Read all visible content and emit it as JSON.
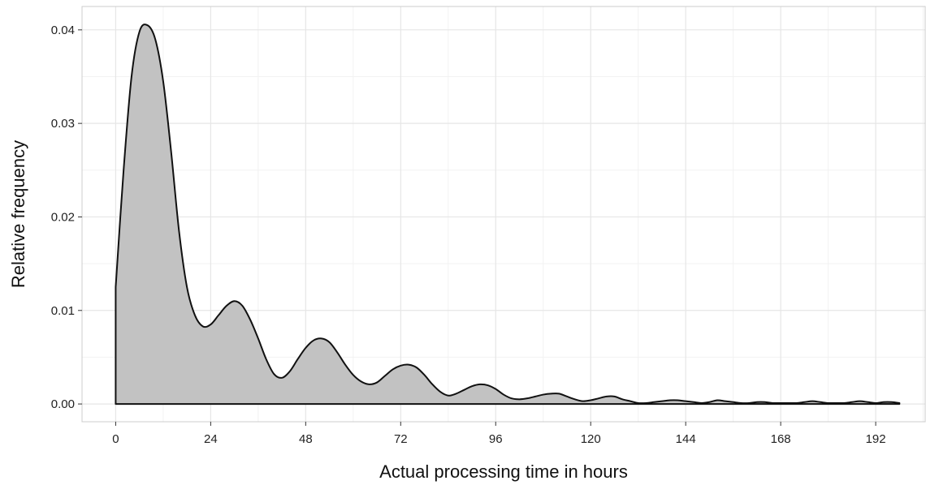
{
  "chart_data": {
    "type": "area",
    "xlabel": "Actual processing time in hours",
    "ylabel": "Relative frequency",
    "xlim": [
      -8.5,
      204.5
    ],
    "ylim": [
      -0.0019,
      0.0425
    ],
    "x_ticks": [
      0,
      24,
      48,
      72,
      96,
      120,
      144,
      168,
      192
    ],
    "x_tick_labels": [
      "0",
      "24",
      "48",
      "72",
      "96",
      "120",
      "144",
      "168",
      "192"
    ],
    "y_ticks": [
      0,
      0.01,
      0.02,
      0.03,
      0.04
    ],
    "y_tick_labels": [
      "0.00",
      "0.01",
      "0.02",
      "0.03",
      "0.04"
    ],
    "grid": true,
    "series": [
      {
        "x": [
          0,
          2,
          4,
          6,
          8,
          10,
          12,
          14,
          16,
          18,
          20,
          22,
          24,
          26,
          28,
          30,
          32,
          34,
          36,
          38,
          40,
          42,
          44,
          46,
          48,
          50,
          52,
          54,
          56,
          58,
          60,
          62,
          64,
          66,
          68,
          70,
          72,
          74,
          76,
          78,
          80,
          82,
          84,
          86,
          88,
          90,
          92,
          94,
          96,
          98,
          100,
          102,
          104,
          106,
          108,
          110,
          112,
          114,
          116,
          118,
          120,
          122,
          124,
          126,
          128,
          130,
          132,
          134,
          136,
          138,
          140,
          142,
          144,
          146,
          148,
          150,
          152,
          154,
          156,
          158,
          160,
          162,
          164,
          166,
          168,
          170,
          172,
          174,
          176,
          178,
          180,
          182,
          184,
          186,
          188,
          190,
          192,
          194,
          196,
          198
        ],
        "y": [
          0.0125,
          0.025,
          0.035,
          0.0398,
          0.0405,
          0.039,
          0.0345,
          0.027,
          0.0185,
          0.0125,
          0.0095,
          0.0083,
          0.0085,
          0.0095,
          0.0105,
          0.011,
          0.0105,
          0.009,
          0.007,
          0.0048,
          0.0032,
          0.0028,
          0.0035,
          0.0048,
          0.006,
          0.0068,
          0.007,
          0.0066,
          0.0055,
          0.0042,
          0.0031,
          0.0024,
          0.0021,
          0.0023,
          0.003,
          0.0037,
          0.0041,
          0.0042,
          0.0039,
          0.0031,
          0.0021,
          0.0013,
          0.0009,
          0.0011,
          0.0015,
          0.0019,
          0.0021,
          0.002,
          0.0016,
          0.001,
          0.0006,
          0.0005,
          0.0006,
          0.0008,
          0.001,
          0.0011,
          0.0011,
          0.0008,
          0.0005,
          0.0003,
          0.0004,
          0.0006,
          0.0008,
          0.0008,
          0.0005,
          0.0003,
          0.0001,
          0.0001,
          0.0002,
          0.0003,
          0.0004,
          0.0004,
          0.0003,
          0.0002,
          0.0001,
          0.0002,
          0.0004,
          0.0003,
          0.0002,
          0.0001,
          0.0001,
          0.0002,
          0.0002,
          0.0001,
          0.0001,
          0.0001,
          0.0001,
          0.0002,
          0.0003,
          0.0002,
          0.0001,
          0.0001,
          0.0001,
          0.0002,
          0.0003,
          0.0002,
          0.0001,
          0.0002,
          0.0002,
          0.0001
        ]
      }
    ],
    "colors": {
      "fill": "#c2c2c2",
      "line": "#111111",
      "grid_major": "#e6e6e6",
      "grid_minor": "#f2f2f2",
      "panel_border": "#cccccc",
      "text": "#222222"
    }
  }
}
